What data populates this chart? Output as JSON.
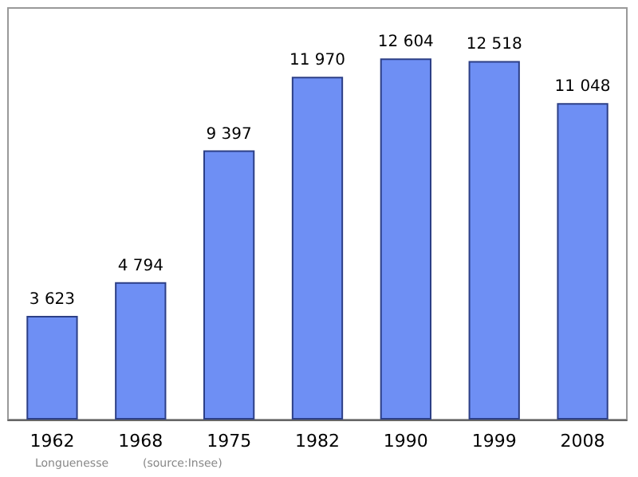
{
  "chart_data": {
    "type": "bar",
    "categories": [
      "1962",
      "1968",
      "1975",
      "1982",
      "1990",
      "1999",
      "2008"
    ],
    "values": [
      3623,
      4794,
      9397,
      11970,
      12604,
      12518,
      11048
    ],
    "value_labels": [
      "3 623",
      "4 794",
      "9 397",
      "11 970",
      "12 604",
      "12 518",
      "11 048"
    ],
    "color": "#6e8ff4",
    "annotations": [
      "Longuenesse",
      "(source:Insee)"
    ]
  }
}
